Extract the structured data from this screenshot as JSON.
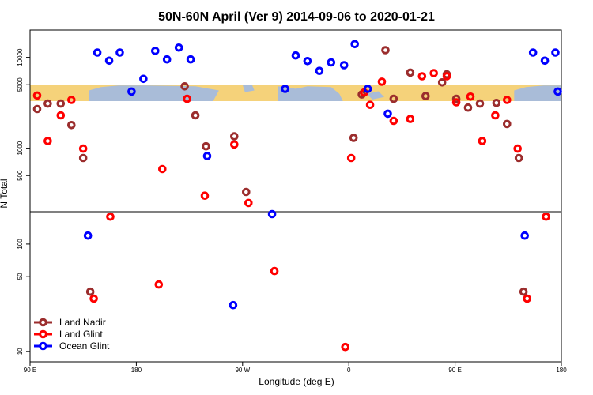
{
  "chart_data": {
    "type": "scatter",
    "title": "50N-60N April (Ver 9)   2014-09-06 to 2020-01-21",
    "xlabel": "Longitude (deg E)",
    "ylabel": "N Total",
    "x_ticks": [
      {
        "value": 90,
        "label": "90 E"
      },
      {
        "value": 180,
        "label": "180"
      },
      {
        "value": 270,
        "label": "90 W"
      },
      {
        "value": 360,
        "label": "0"
      },
      {
        "value": 450,
        "label": "90 E"
      },
      {
        "value": 540,
        "label": "180"
      }
    ],
    "xlim": [
      90,
      540
    ],
    "y_scale": "log",
    "upper_panel": {
      "ylim": [
        200,
        20000
      ],
      "y_ticks": [
        500,
        1000,
        5000,
        10000
      ]
    },
    "lower_panel": {
      "ylim": [
        8,
        200
      ],
      "y_ticks": [
        10,
        50,
        100
      ]
    },
    "map_band": {
      "ylim": [
        3300,
        5000
      ],
      "land_color": "#f5d27a",
      "ocean_color": "#a9bcd8"
    },
    "colors": {
      "land_nadir": "#9b2d2d",
      "land_glint": "#ff0000",
      "ocean_glint": "#0000ff"
    },
    "legend": {
      "position": "bottom-left",
      "entries": [
        "Land Nadir",
        "Land Glint",
        "Ocean Glint"
      ]
    },
    "series": [
      {
        "name": "Land Nadir",
        "points": [
          [
            96,
            2700
          ],
          [
            105,
            3100
          ],
          [
            116,
            3100
          ],
          [
            125,
            1800
          ],
          [
            135,
            780
          ],
          [
            141,
            36
          ],
          [
            221,
            4800
          ],
          [
            230,
            2300
          ],
          [
            239,
            1050
          ],
          [
            263,
            1350
          ],
          [
            273,
            330
          ],
          [
            364,
            1300
          ],
          [
            371,
            3900
          ],
          [
            391,
            12000
          ],
          [
            398,
            3500
          ],
          [
            412,
            6800
          ],
          [
            425,
            3750
          ],
          [
            439,
            5300
          ],
          [
            443,
            6500
          ],
          [
            451,
            3500
          ],
          [
            461,
            2800
          ],
          [
            471,
            3100
          ],
          [
            485,
            3150
          ],
          [
            494,
            1850
          ],
          [
            504,
            780
          ],
          [
            508,
            36
          ]
        ]
      },
      {
        "name": "Land Glint",
        "points": [
          [
            96,
            3800
          ],
          [
            105,
            1200
          ],
          [
            116,
            2300
          ],
          [
            125,
            3400
          ],
          [
            135,
            990
          ],
          [
            144,
            31
          ],
          [
            158,
            180
          ],
          [
            199,
            42
          ],
          [
            202,
            590
          ],
          [
            223,
            3500
          ],
          [
            238,
            300
          ],
          [
            263,
            1100
          ],
          [
            275,
            250
          ],
          [
            297,
            56
          ],
          [
            357,
            11
          ],
          [
            362,
            780
          ],
          [
            373,
            4100
          ],
          [
            378,
            3000
          ],
          [
            388,
            5400
          ],
          [
            398,
            2000
          ],
          [
            412,
            2100
          ],
          [
            422,
            6200
          ],
          [
            432,
            6700
          ],
          [
            443,
            6200
          ],
          [
            451,
            3200
          ],
          [
            463,
            3700
          ],
          [
            473,
            1200
          ],
          [
            484,
            2300
          ],
          [
            494,
            3400
          ],
          [
            503,
            990
          ],
          [
            511,
            31
          ],
          [
            527,
            180
          ]
        ]
      },
      {
        "name": "Ocean Glint",
        "points": [
          [
            139,
            120
          ],
          [
            147,
            11300
          ],
          [
            157,
            9200
          ],
          [
            166,
            11300
          ],
          [
            176,
            4200
          ],
          [
            186,
            5800
          ],
          [
            196,
            11800
          ],
          [
            206,
            9500
          ],
          [
            216,
            12800
          ],
          [
            226,
            9500
          ],
          [
            240,
            820
          ],
          [
            262,
            27
          ],
          [
            295,
            190
          ],
          [
            306,
            4500
          ],
          [
            315,
            10500
          ],
          [
            325,
            9100
          ],
          [
            335,
            7100
          ],
          [
            345,
            8800
          ],
          [
            356,
            8200
          ],
          [
            365,
            14000
          ],
          [
            376,
            4500
          ],
          [
            393,
            2400
          ],
          [
            509,
            120
          ],
          [
            516,
            11300
          ],
          [
            526,
            9200
          ],
          [
            535,
            11300
          ],
          [
            537,
            4200
          ]
        ]
      }
    ]
  }
}
